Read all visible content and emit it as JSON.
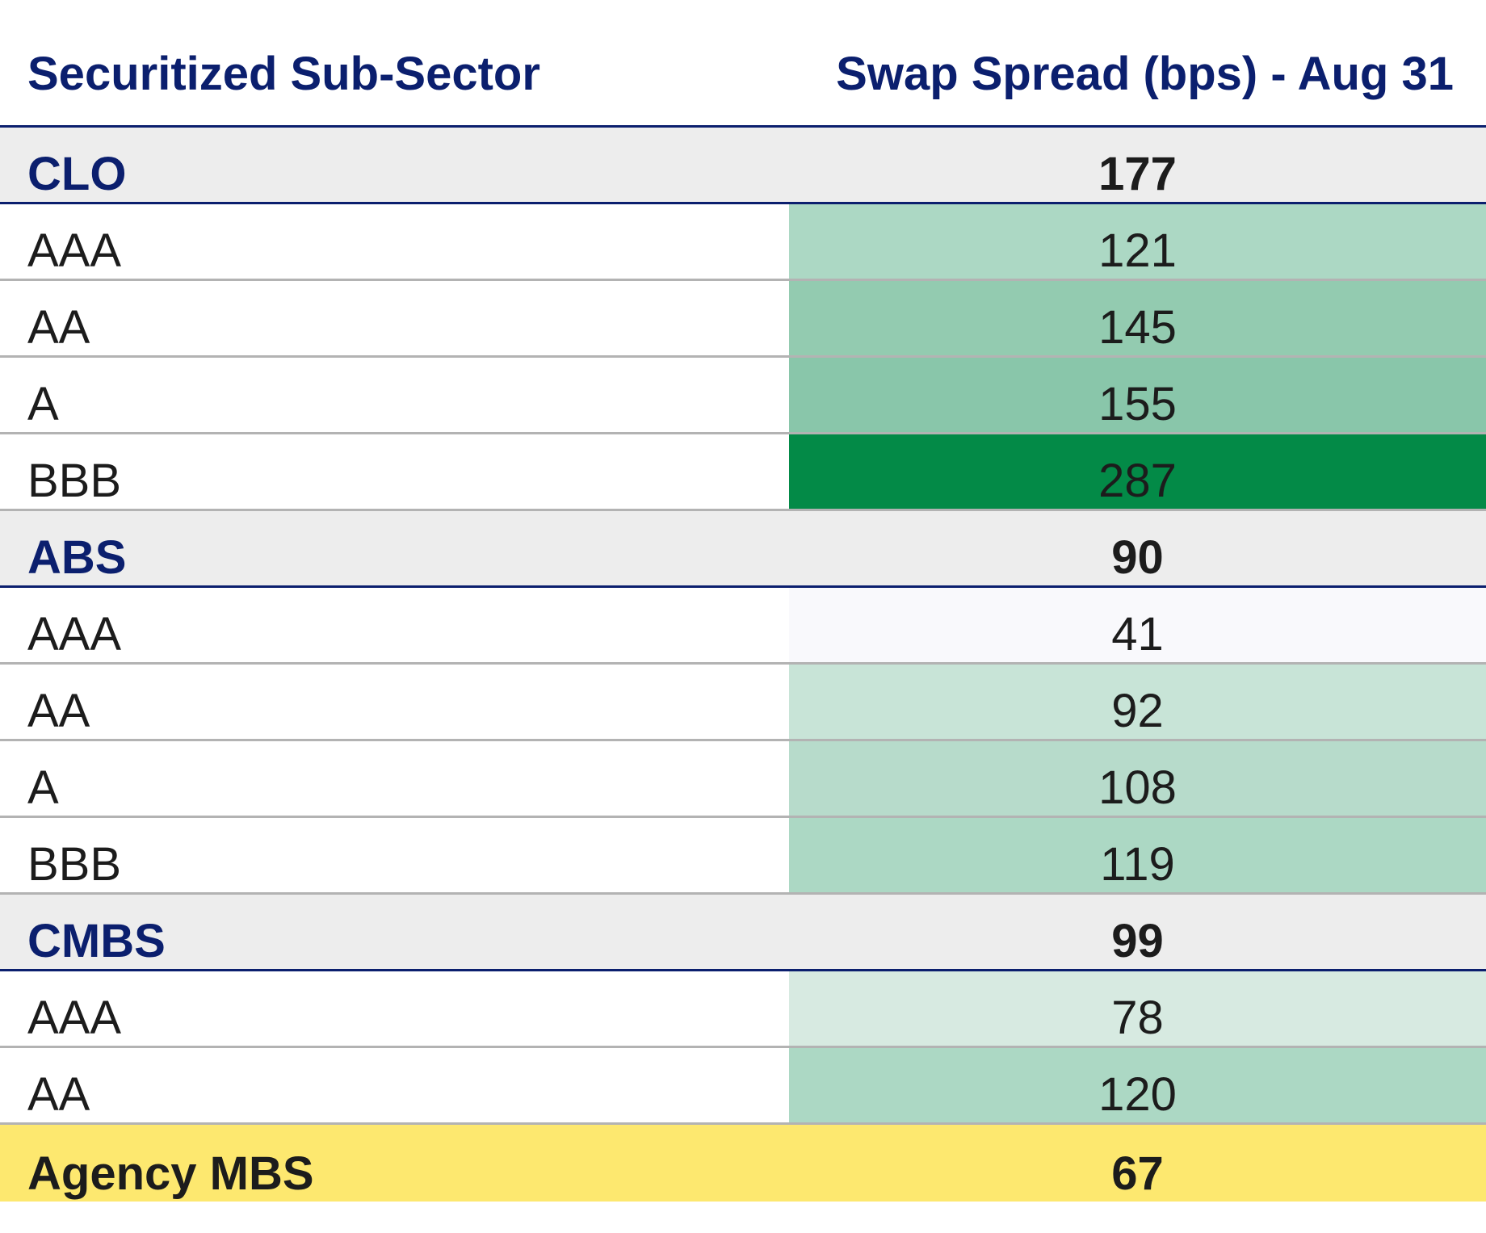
{
  "header": {
    "left_label": "Securitized Sub-Sector",
    "right_label": "Swap Spread (bps) - Aug 31"
  },
  "chart_data": {
    "type": "table",
    "columns": [
      "Securitized Sub-Sector",
      "Swap Spread (bps) - Aug 31"
    ],
    "rows": [
      {
        "kind": "sector",
        "label": "CLO",
        "value": 177
      },
      {
        "kind": "rating",
        "label": "AAA",
        "value": 121,
        "color": "#acd8c4"
      },
      {
        "kind": "rating",
        "label": "AA",
        "value": 145,
        "color": "#93cbb0"
      },
      {
        "kind": "rating",
        "label": "A",
        "value": 155,
        "color": "#89c6aa"
      },
      {
        "kind": "rating",
        "label": "BBB",
        "value": 287,
        "color": "#038a47"
      },
      {
        "kind": "sector",
        "label": "ABS",
        "value": 90
      },
      {
        "kind": "rating",
        "label": "AAA",
        "value": 41,
        "color": "#f9f9fc"
      },
      {
        "kind": "rating",
        "label": "AA",
        "value": 92,
        "color": "#c8e4d7"
      },
      {
        "kind": "rating",
        "label": "A",
        "value": 108,
        "color": "#b7dbcb"
      },
      {
        "kind": "rating",
        "label": "BBB",
        "value": 119,
        "color": "#acd8c4"
      },
      {
        "kind": "sector",
        "label": "CMBS",
        "value": 99
      },
      {
        "kind": "rating",
        "label": "AAA",
        "value": 78,
        "color": "#d7eae1"
      },
      {
        "kind": "rating",
        "label": "AA",
        "value": 120,
        "color": "#acd8c4"
      },
      {
        "kind": "agency",
        "label": "Agency MBS",
        "value": 67
      }
    ]
  },
  "colors": {
    "header_text": "#0b1f6e",
    "sector_background": "#ededed",
    "agency_background": "#fde86f",
    "divider_sector": "#0b1f6e",
    "divider_rating": "#b3b3b3"
  }
}
